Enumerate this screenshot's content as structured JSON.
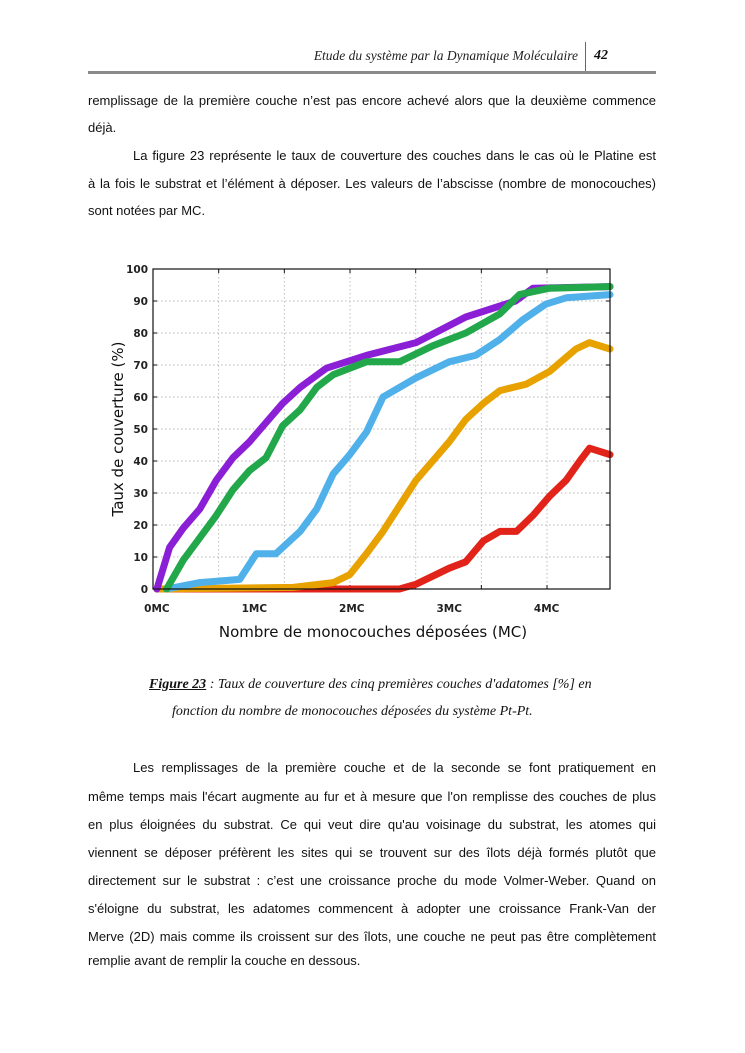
{
  "header": {
    "title": "Etude du système par la Dynamique Moléculaire",
    "page_number": "42"
  },
  "paragraph1": [
    "remplissage de la première couche n’est pas encore achevé alors que la deuxième commence",
    "déjà."
  ],
  "paragraph2": [
    "La figure 23 représente le taux de couverture des couches dans le cas où le Platine est",
    "à la fois le substrat et l’élément à déposer. Les valeurs de l’abscisse (nombre de monocouches)",
    "sont notées par MC."
  ],
  "caption": {
    "label": "Figure 23",
    "line1": " : Taux de couverture des cinq premières couches d'adatomes [%] en",
    "line2": "fonction du nombre de monocouches  déposées du système Pt-Pt."
  },
  "paragraph3": [
    "Les remplissages de la première couche et de la seconde se font pratiquement en",
    "même temps mais l'écart augmente au fur et à mesure que l'on remplisse des couches de plus",
    "en plus éloignées du substrat. Ce qui veut dire qu'au voisinage du substrat, les atomes qui",
    "viennent se déposer préfèrent les sites qui se trouvent sur des îlots déjà formés plutôt que",
    "directement sur le substrat : c’est une croissance proche du mode Volmer-Weber. Quand on",
    "s'éloigne du substrat, les adatomes commencent à adopter une croissance Frank-Van der",
    "Merve (2D) mais comme ils croissent sur des îlots, une couche ne peut pas être complètement",
    "remplie avant de remplir la couche en dessous."
  ],
  "chart_data": {
    "type": "line",
    "title": "",
    "xlabel": "Nombre de monocouches déposées (MC)",
    "ylabel": "Taux de couverture (%)",
    "xlim": [
      -0.04,
      4.65
    ],
    "ylim": [
      0,
      100
    ],
    "grid": true,
    "legend": "none",
    "x_ticks": [
      {
        "value": 0,
        "label": "0MC"
      },
      {
        "value": 1,
        "label": "1MC"
      },
      {
        "value": 2,
        "label": "2MC"
      },
      {
        "value": 3,
        "label": "3MC"
      },
      {
        "value": 4,
        "label": "4MC"
      }
    ],
    "y_ticks": [
      0,
      10,
      20,
      30,
      40,
      50,
      60,
      70,
      80,
      90,
      100
    ],
    "series": [
      {
        "color": "#e2231a",
        "points": [
          [
            0,
            0
          ],
          [
            2.49,
            0
          ],
          [
            2.66,
            1.5
          ],
          [
            3.0,
            6.5
          ],
          [
            3.17,
            8.5
          ],
          [
            3.35,
            15
          ],
          [
            3.52,
            18
          ],
          [
            3.69,
            18
          ],
          [
            3.86,
            23
          ],
          [
            4.03,
            29
          ],
          [
            4.2,
            34
          ],
          [
            4.34,
            40
          ],
          [
            4.44,
            44
          ],
          [
            4.65,
            42
          ]
        ]
      },
      {
        "color": "#e8a200",
        "points": [
          [
            0,
            0
          ],
          [
            1.4,
            0.5
          ],
          [
            1.81,
            2
          ],
          [
            1.98,
            4.5
          ],
          [
            2.15,
            11
          ],
          [
            2.32,
            18
          ],
          [
            2.49,
            26
          ],
          [
            2.66,
            34
          ],
          [
            2.83,
            40
          ],
          [
            3.0,
            46
          ],
          [
            3.17,
            53
          ],
          [
            3.35,
            58
          ],
          [
            3.52,
            62
          ],
          [
            3.79,
            64
          ],
          [
            4.03,
            68
          ],
          [
            4.3,
            75
          ],
          [
            4.44,
            77
          ],
          [
            4.65,
            75
          ]
        ]
      },
      {
        "color": "#4fb0ea",
        "points": [
          [
            0.1,
            0
          ],
          [
            0.44,
            2
          ],
          [
            0.85,
            3
          ],
          [
            1.02,
            11
          ],
          [
            1.22,
            11
          ],
          [
            1.47,
            18
          ],
          [
            1.64,
            25
          ],
          [
            1.81,
            36
          ],
          [
            1.98,
            42
          ],
          [
            2.15,
            49
          ],
          [
            2.32,
            60
          ],
          [
            2.66,
            66
          ],
          [
            3.0,
            71
          ],
          [
            3.27,
            73
          ],
          [
            3.52,
            78
          ],
          [
            3.75,
            84
          ],
          [
            3.99,
            89
          ],
          [
            4.2,
            91
          ],
          [
            4.65,
            92
          ]
        ]
      },
      {
        "color": "#8a1fd6",
        "points": [
          [
            0,
            0
          ],
          [
            0.13,
            13
          ],
          [
            0.27,
            19
          ],
          [
            0.44,
            25
          ],
          [
            0.61,
            34
          ],
          [
            0.78,
            41
          ],
          [
            0.95,
            46
          ],
          [
            1.12,
            52
          ],
          [
            1.29,
            58
          ],
          [
            1.47,
            63
          ],
          [
            1.74,
            69
          ],
          [
            2.15,
            73
          ],
          [
            2.66,
            77
          ],
          [
            3.17,
            85
          ],
          [
            3.68,
            90
          ],
          [
            3.86,
            94
          ],
          [
            4.65,
            94.5
          ]
        ]
      },
      {
        "color": "#22a84a",
        "points": [
          [
            0.1,
            0
          ],
          [
            0.27,
            9
          ],
          [
            0.44,
            16
          ],
          [
            0.61,
            23
          ],
          [
            0.78,
            31
          ],
          [
            0.95,
            37
          ],
          [
            1.12,
            41
          ],
          [
            1.29,
            51
          ],
          [
            1.47,
            56
          ],
          [
            1.64,
            63
          ],
          [
            1.81,
            67
          ],
          [
            2.15,
            71
          ],
          [
            2.49,
            71
          ],
          [
            2.83,
            76
          ],
          [
            3.17,
            80
          ],
          [
            3.52,
            86
          ],
          [
            3.72,
            92
          ],
          [
            4.03,
            94
          ],
          [
            4.65,
            94.5
          ]
        ]
      }
    ]
  }
}
